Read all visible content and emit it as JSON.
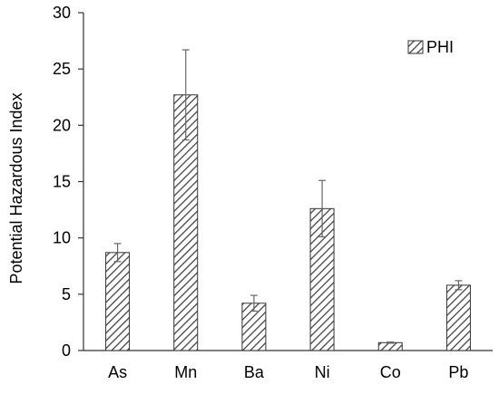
{
  "chart_data": {
    "type": "bar",
    "categories": [
      "As",
      "Mn",
      "Ba",
      "Ni",
      "Co",
      "Pb"
    ],
    "series": [
      {
        "name": "PHI",
        "values": [
          8.7,
          22.7,
          4.2,
          12.6,
          0.7,
          5.8
        ],
        "errors": [
          0.8,
          4.0,
          0.7,
          2.5,
          0.05,
          0.4
        ]
      }
    ],
    "title": "",
    "xlabel": "",
    "ylabel": "Potential Hazardous Index",
    "ylim": [
      0,
      30
    ],
    "yticks": [
      0,
      5,
      10,
      15,
      20,
      25,
      30
    ],
    "ytick_labels": [
      "0",
      "5",
      "10",
      "15",
      "20",
      "25",
      "30"
    ],
    "grid": false,
    "legend": "top-right",
    "bar_pattern": "diagonal-hatch",
    "colors": {
      "bar_fill_base": "#ffffff",
      "hatch": "#444444",
      "bar_border": "#333333",
      "error_bar": "#666666",
      "axis": "#333333"
    }
  }
}
